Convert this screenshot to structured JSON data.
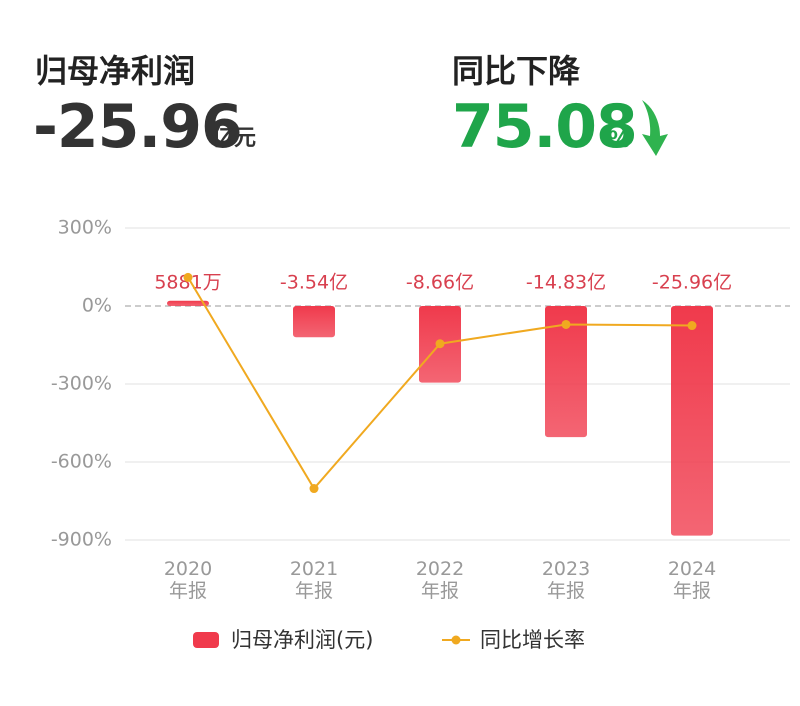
{
  "header": {
    "left_title": "归母净利润",
    "left_value": "-25.96",
    "left_unit": "亿元",
    "right_title": "同比下降",
    "right_value": "75.08",
    "right_unit": "%"
  },
  "chart_data": {
    "type": "bar",
    "categories": [
      "2020\n年报",
      "2021\n年报",
      "2022\n年报",
      "2023\n年报",
      "2024\n年报"
    ],
    "series": [
      {
        "name": "归母净利润(元)",
        "type": "bar",
        "axis": "y2",
        "color": "#f03a4c",
        "values": [
          58810000,
          -354000000,
          -866000000,
          -1483000000,
          -2596000000
        ],
        "value_labels": [
          "5881万",
          "-3.54亿",
          "-8.66亿",
          "-14.83亿",
          "-25.96亿"
        ]
      },
      {
        "name": "同比增长率",
        "type": "line",
        "color": "#f0a920",
        "values": [
          110,
          -702,
          -145,
          -71,
          -75.08
        ]
      }
    ],
    "ylim": [
      -900,
      300
    ],
    "yticks": [
      {
        "value": 300,
        "label": "300%"
      },
      {
        "value": 0,
        "label": "0%"
      },
      {
        "value": -300,
        "label": "-300%"
      },
      {
        "value": -600,
        "label": "-600%"
      },
      {
        "value": -900,
        "label": "-900%"
      }
    ],
    "y2lim": [
      -2646000000,
      882000000
    ],
    "grid": true
  }
}
